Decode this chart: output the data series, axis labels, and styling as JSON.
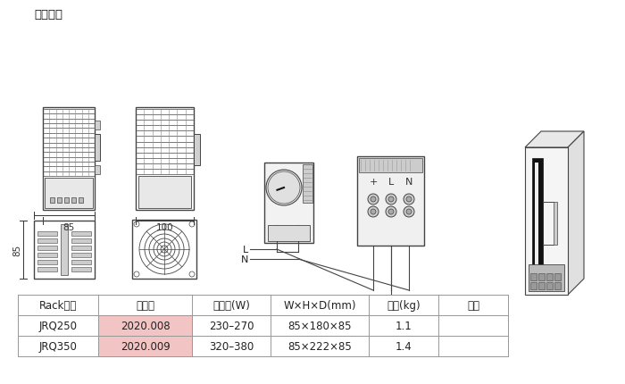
{
  "title": "外形尺寸",
  "background_color": "#ffffff",
  "table": {
    "headers": [
      "Rack型号",
      "订货号",
      "热输出(W)",
      "W×H×D(mm)",
      "重量(kg)",
      "备注"
    ],
    "rows": [
      [
        "JRQ250",
        "2020.008",
        "230–270",
        "85×180×85",
        "1.1",
        ""
      ],
      [
        "JRQ350",
        "2020.009",
        "320–380",
        "85×222×85",
        "1.4",
        ""
      ]
    ],
    "order_bg": "#f2c4c4",
    "border_color": "#999999",
    "font_size": 8.5
  },
  "colors": {
    "line": "#444444",
    "light_gray": "#d8d8d8",
    "mid_gray": "#aaaaaa",
    "dark": "#222222",
    "red": "#cc1111",
    "dim": "#555555"
  },
  "layout": {
    "fig_w": 7.0,
    "fig_h": 4.31,
    "dpi": 100
  }
}
